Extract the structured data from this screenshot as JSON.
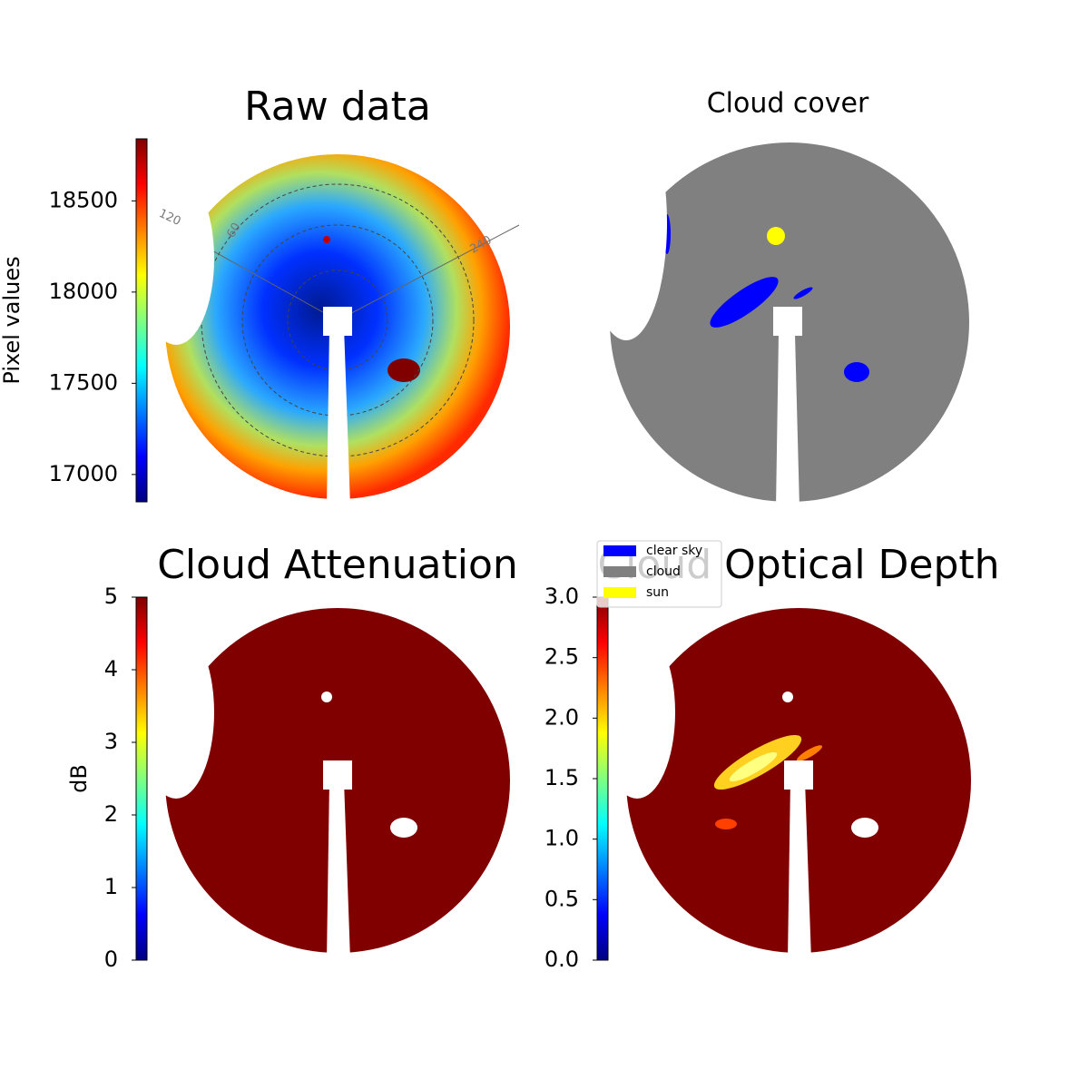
{
  "chart_data": [
    {
      "type": "image",
      "title": "Raw data",
      "colorbar_label": "Pixel values",
      "colormap": "jet",
      "clim": [
        16850,
        18840
      ],
      "cticks": [
        17000,
        17500,
        18000,
        18500
      ],
      "polar_labels": [
        120,
        60,
        240
      ]
    },
    {
      "type": "categorical-image",
      "title": "Cloud cover",
      "legend": [
        {
          "name": "clear sky",
          "color": "#0000ff"
        },
        {
          "name": "cloud",
          "color": "#808080"
        },
        {
          "name": "sun",
          "color": "#ffff00"
        }
      ]
    },
    {
      "type": "image",
      "title": "Cloud Attenuation",
      "colorbar_label": "dB",
      "colormap": "jet",
      "clim": [
        0,
        5
      ],
      "cticks": [
        0,
        1,
        2,
        3,
        4,
        5
      ]
    },
    {
      "type": "image",
      "title": "Cloud Optical Depth",
      "colormap": "jet",
      "clim": [
        0,
        3
      ],
      "cticks": [
        {
          "value": 0,
          "label": "0.0"
        },
        0.5,
        {
          "value": 1,
          "label": "1.0"
        },
        1.5,
        {
          "value": 2,
          "label": "2.0"
        },
        2.5,
        {
          "value": 3,
          "label": "3.0"
        }
      ]
    }
  ]
}
